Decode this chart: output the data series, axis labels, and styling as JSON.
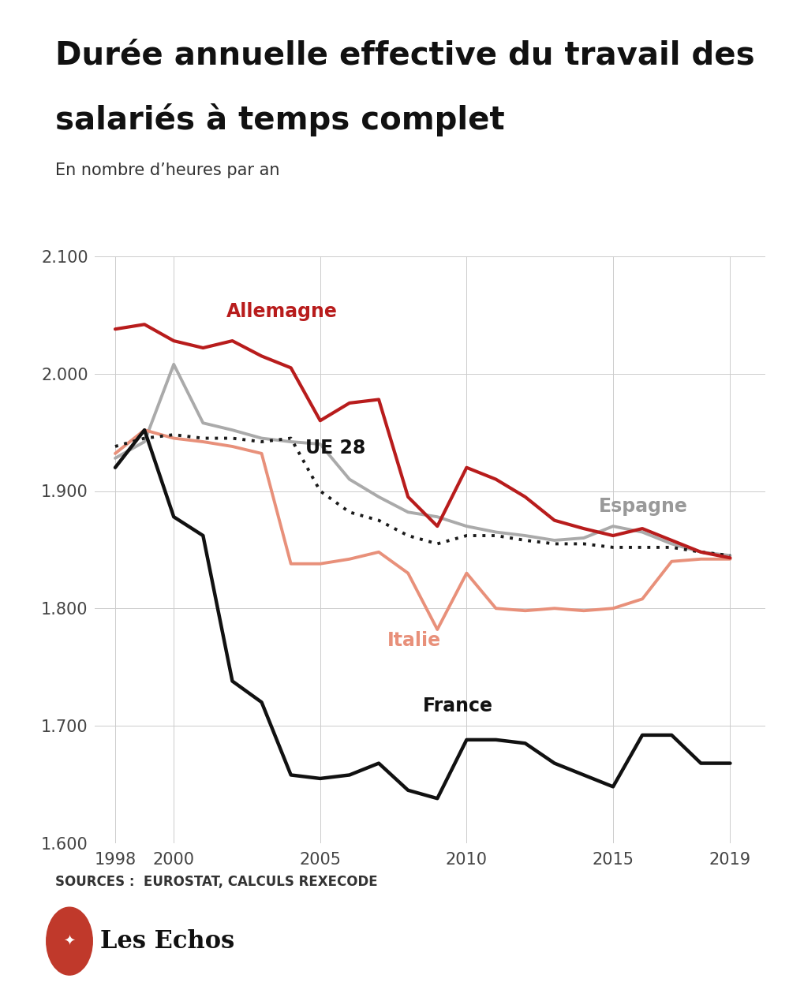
{
  "title_line1": "Durée annuelle effective du travail des",
  "title_line2": "salariés à temps complet",
  "subtitle": "En nombre d’heures par an",
  "source": "SOURCES :  EUROSTAT, CALCULS REXECODE",
  "years": [
    1998,
    1999,
    2000,
    2001,
    2002,
    2003,
    2004,
    2005,
    2006,
    2007,
    2008,
    2009,
    2010,
    2011,
    2012,
    2013,
    2014,
    2015,
    2016,
    2017,
    2018,
    2019
  ],
  "allemagne": [
    2038,
    2042,
    2028,
    2022,
    2028,
    2015,
    2005,
    1960,
    1975,
    1978,
    1895,
    1870,
    1920,
    1910,
    1895,
    1875,
    1868,
    1862,
    1868,
    1858,
    1848,
    1843
  ],
  "espagne": [
    1928,
    1942,
    2008,
    1958,
    1952,
    1945,
    1942,
    1940,
    1910,
    1895,
    1882,
    1878,
    1870,
    1865,
    1862,
    1858,
    1860,
    1870,
    1865,
    1855,
    1848,
    1845
  ],
  "ue28": [
    1938,
    1945,
    1948,
    1945,
    1945,
    1942,
    1945,
    1900,
    1882,
    1875,
    1862,
    1855,
    1862,
    1862,
    1858,
    1855,
    1855,
    1852,
    1852,
    1852,
    1848,
    1845
  ],
  "italie": [
    1932,
    1952,
    1945,
    1942,
    1938,
    1932,
    1838,
    1838,
    1842,
    1848,
    1830,
    1782,
    1830,
    1800,
    1798,
    1800,
    1798,
    1800,
    1808,
    1840,
    1842,
    1842
  ],
  "france": [
    1920,
    1952,
    1878,
    1862,
    1738,
    1720,
    1658,
    1655,
    1658,
    1668,
    1645,
    1638,
    1688,
    1688,
    1685,
    1668,
    1658,
    1648,
    1692,
    1692,
    1668,
    1668
  ],
  "color_allemagne": "#b81c1c",
  "color_espagne": "#aaaaaa",
  "color_ue28": "#1a1a1a",
  "color_italie": "#e8907a",
  "color_france": "#111111",
  "ylim_min": 1600,
  "ylim_max": 2100,
  "yticks": [
    1600,
    1700,
    1800,
    1900,
    2000,
    2100
  ],
  "xticks": [
    1998,
    2000,
    2005,
    2010,
    2015,
    2019
  ],
  "background_color": "#ffffff",
  "grid_color": "#cccccc"
}
